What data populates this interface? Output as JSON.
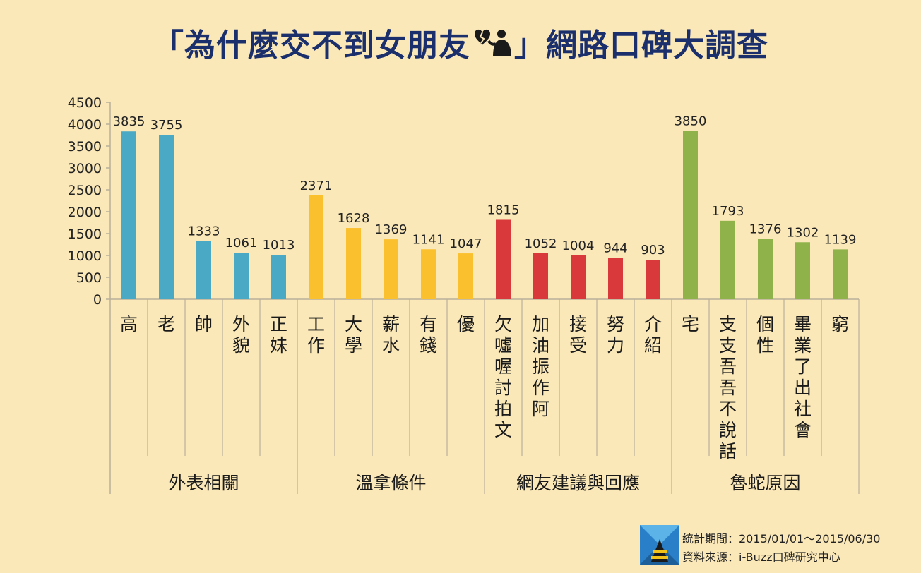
{
  "title": {
    "prefix": "「為什麼交不到女朋友",
    "suffix": "」網路口碑大調查",
    "icon": "broken-heart-person-icon"
  },
  "chart_data": {
    "type": "bar",
    "ylim": [
      0,
      4500
    ],
    "yticks": [
      0,
      500,
      1000,
      1500,
      2000,
      2500,
      3000,
      3500,
      4000,
      4500
    ],
    "grid": false,
    "groups": [
      {
        "name": "外表相關",
        "color": "#4aa9c4",
        "categories": [
          "高",
          "老",
          "帥",
          "外貌",
          "正妹"
        ],
        "values": [
          3835,
          3755,
          1333,
          1061,
          1013
        ]
      },
      {
        "name": "溫拿條件",
        "color": "#fbc02d",
        "categories": [
          "工作",
          "大學",
          "薪水",
          "有錢",
          "優"
        ],
        "values": [
          2371,
          1628,
          1369,
          1141,
          1047
        ]
      },
      {
        "name": "網友建議與回應",
        "color": "#d9393b",
        "categories": [
          "欠噓喔討拍文",
          "加油振作阿",
          "接受",
          "努力",
          "介紹"
        ],
        "values": [
          1815,
          1052,
          1004,
          944,
          903
        ]
      },
      {
        "name": "魯蛇原因",
        "color": "#8fb34a",
        "categories": [
          "宅",
          "支支吾吾不說話",
          "個性",
          "畢業了出社會",
          "窮"
        ],
        "values": [
          3850,
          1793,
          1376,
          1302,
          1139
        ]
      }
    ]
  },
  "footer": {
    "period": "統計期間：2015/01/01～2015/06/30",
    "source": "資料來源：i-Buzz口碑研究中心"
  }
}
